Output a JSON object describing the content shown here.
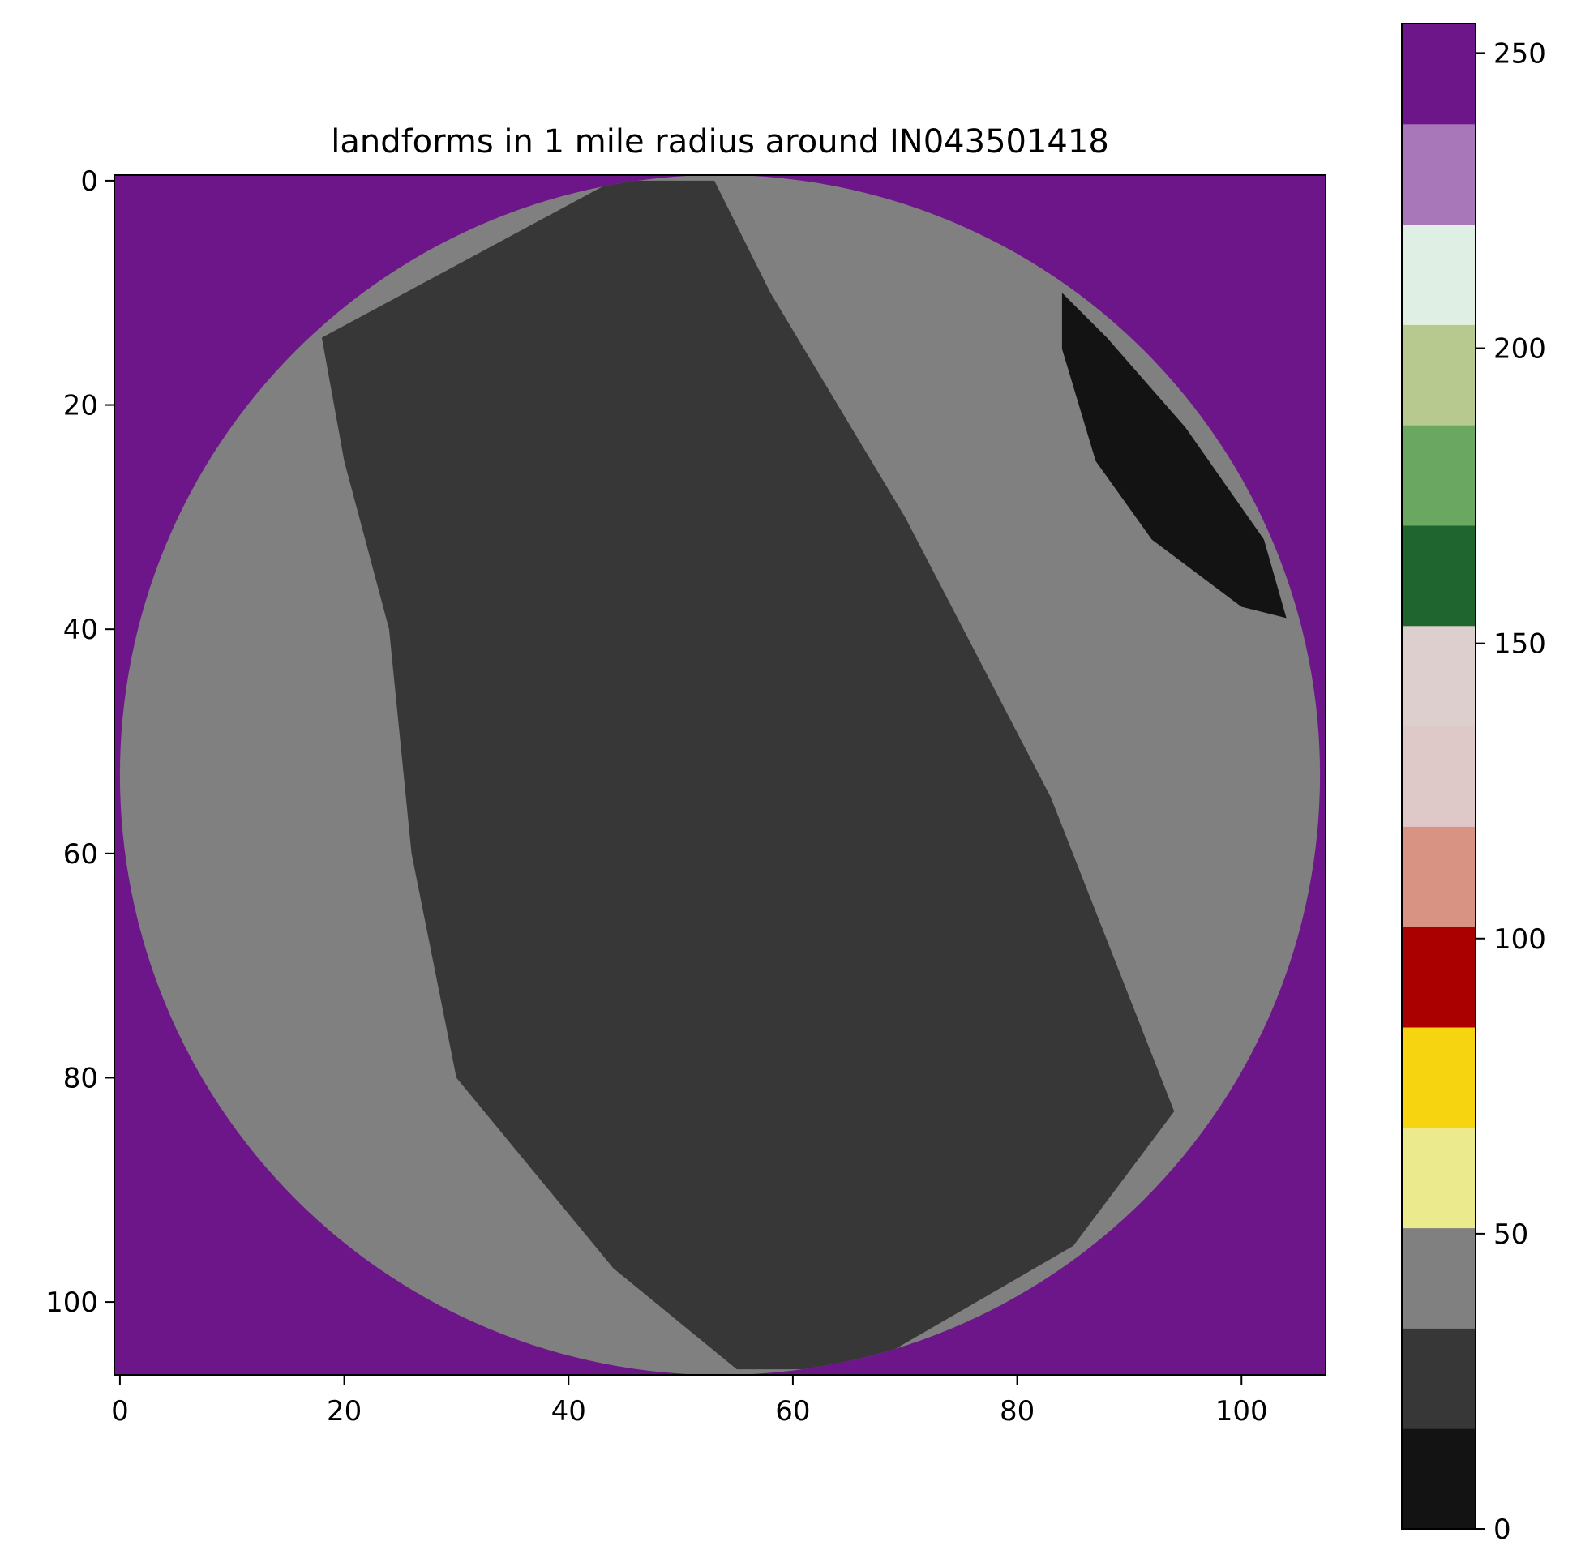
{
  "chart_data": {
    "type": "heatmap",
    "title": "landforms in 1 mile radius around IN043501418",
    "x_ticks": [
      0,
      20,
      40,
      60,
      80,
      100
    ],
    "y_ticks": [
      0,
      20,
      40,
      60,
      80,
      100
    ],
    "xlim": [
      -0.5,
      107.5
    ],
    "ylim": [
      106.5,
      -0.5
    ],
    "grid": false,
    "image_description": "circular region of landform classes on a background value of 255; bands from lower-left to upper-right: value 40 (light gray), value 24 (dark gray) diagonal band, value 40 (light gray), small value 8 (black) lens in the upper right",
    "regions": [
      {
        "class": 255,
        "color": "#6d168a",
        "shape": "background"
      },
      {
        "class": 40,
        "color": "#808080",
        "shape": "circle",
        "cx": 53.5,
        "cy": 53,
        "r": 53.5
      },
      {
        "class": 24,
        "color": "#373737",
        "shape": "band",
        "polygon": [
          [
            18,
            14
          ],
          [
            44,
            0
          ],
          [
            53,
            0
          ],
          [
            58,
            10
          ],
          [
            70,
            30
          ],
          [
            83,
            55
          ],
          [
            94,
            83
          ],
          [
            85,
            95
          ],
          [
            66,
            106
          ],
          [
            55,
            106
          ],
          [
            44,
            97
          ],
          [
            30,
            80
          ],
          [
            26,
            60
          ],
          [
            24,
            40
          ],
          [
            20,
            25
          ]
        ]
      },
      {
        "class": 8,
        "color": "#131313",
        "shape": "lens",
        "polygon": [
          [
            84,
            10
          ],
          [
            88,
            14
          ],
          [
            95,
            22
          ],
          [
            102,
            32
          ],
          [
            104,
            39
          ],
          [
            100,
            38
          ],
          [
            92,
            32
          ],
          [
            87,
            25
          ],
          [
            84,
            15
          ]
        ]
      }
    ],
    "colorbar": {
      "ticks": [
        0,
        50,
        100,
        150,
        200,
        250
      ],
      "range": [
        0,
        255
      ],
      "colors": [
        "#131313",
        "#373737",
        "#808080",
        "#ebea8c",
        "#f6d410",
        "#ab0000",
        "#d99382",
        "#dec9c8",
        "#ddcfcd",
        "#1f6530",
        "#6aa862",
        "#b8c98f",
        "#e0efe4",
        "#a877ba",
        "#6d168a"
      ]
    }
  }
}
